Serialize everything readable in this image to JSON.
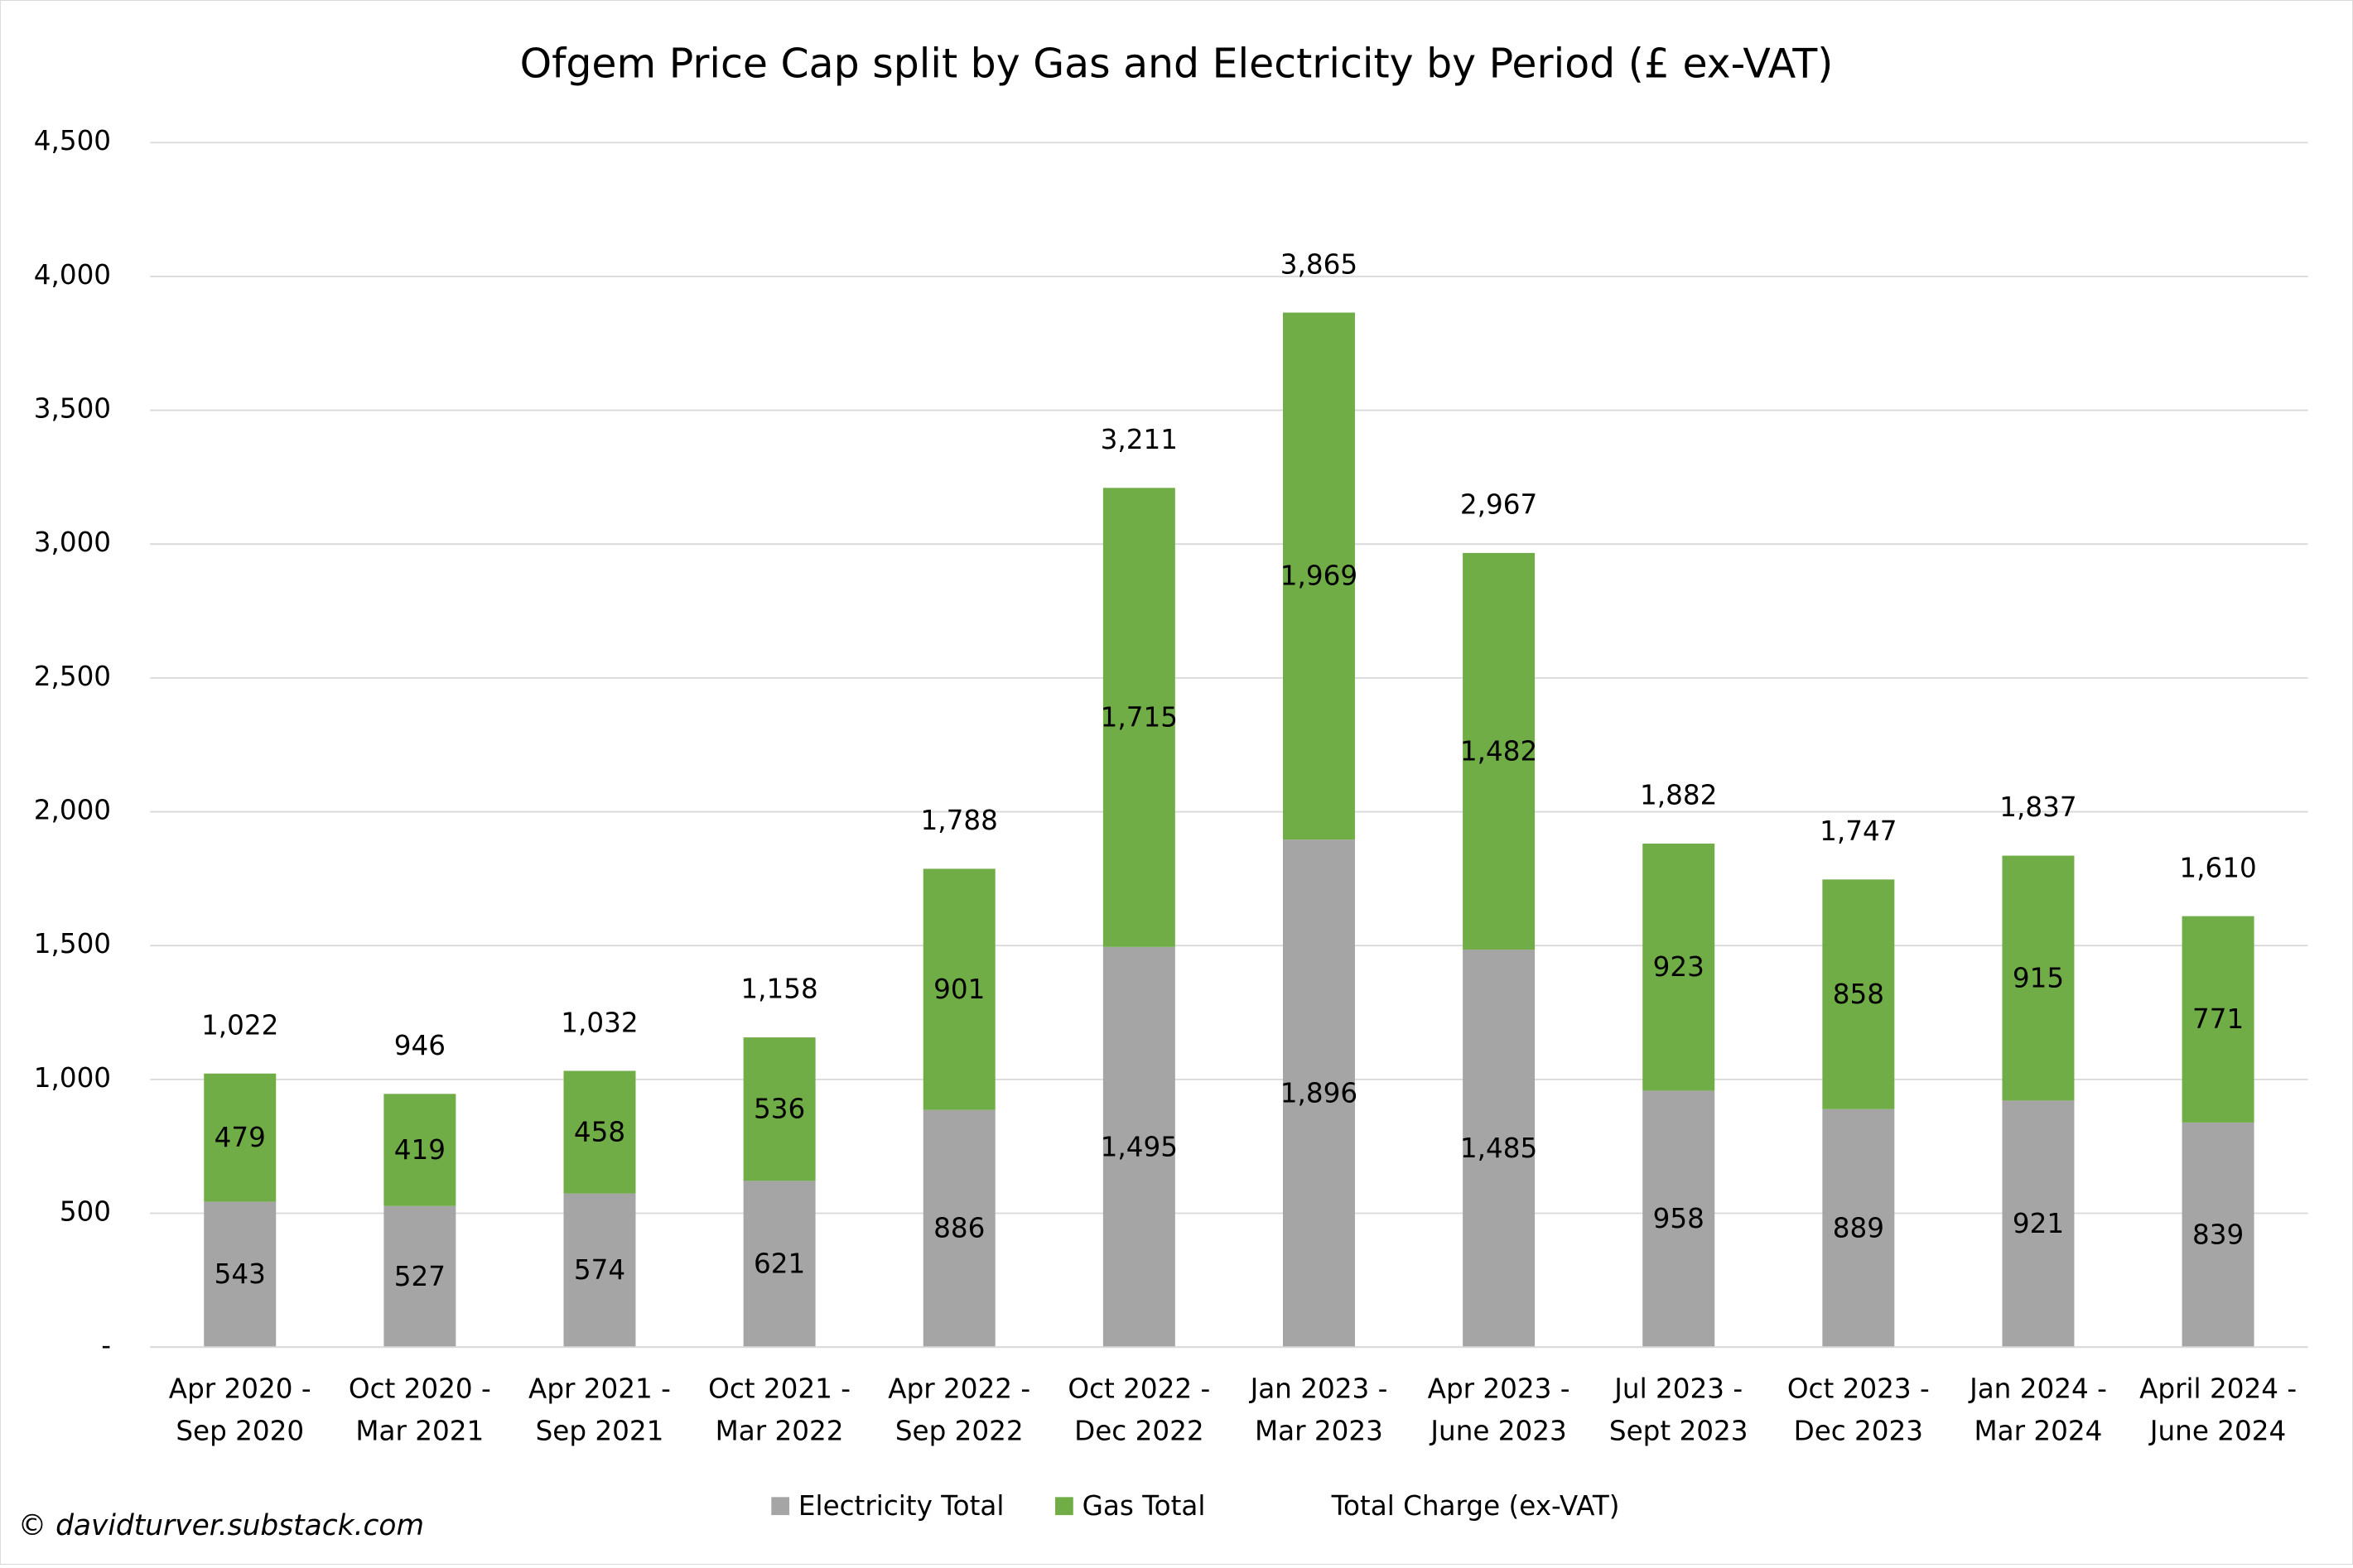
{
  "chart_data": {
    "type": "stacked_bar",
    "title": "Ofgem Price Cap split by Gas and Electricity by Period (£ ex-VAT)",
    "footer": "© davidturver.substack.com",
    "categories": [
      "Apr 2020 - Sep 2020",
      "Oct 2020 - Mar 2021",
      "Apr 2021 - Sep 2021",
      "Oct 2021 - Mar 2022",
      "Apr 2022 - Sep 2022",
      "Oct 2022 - Dec 2022",
      "Jan 2023 - Mar 2023",
      "Apr 2023 - June 2023",
      "Jul 2023 - Sept 2023",
      "Oct 2023 - Dec 2023",
      "Jan 2024 - Mar 2024",
      "April 2024 - June 2024"
    ],
    "series": [
      {
        "name": "Electricity Total",
        "color": "#a5a5a5",
        "values": [
          543,
          527,
          574,
          621,
          886,
          1495,
          1896,
          1485,
          958,
          889,
          921,
          839
        ],
        "value_labels": [
          "543",
          "527",
          "574",
          "621",
          "886",
          "1,495",
          "1,896",
          "1,485",
          "958",
          "889",
          "921",
          "839"
        ]
      },
      {
        "name": "Gas Total",
        "color": "#70ad47",
        "values": [
          479,
          419,
          458,
          536,
          901,
          1715,
          1969,
          1482,
          923,
          858,
          915,
          771
        ],
        "value_labels": [
          "479",
          "419",
          "458",
          "536",
          "901",
          "1,715",
          "1,969",
          "1,482",
          "923",
          "858",
          "915",
          "771"
        ]
      },
      {
        "name": "Total Charge (ex-VAT)",
        "kind": "total",
        "values": [
          1022,
          946,
          1032,
          1158,
          1788,
          3211,
          3865,
          2967,
          1882,
          1747,
          1837,
          1610
        ],
        "value_labels": [
          "1,022",
          "946",
          "1,032",
          "1,158",
          "1,788",
          "3,211",
          "3,865",
          "2,967",
          "1,882",
          "1,747",
          "1,837",
          "1,610"
        ]
      }
    ],
    "ylim": [
      0,
      4500
    ],
    "yticks": [
      {
        "value": 0,
        "label": "-"
      },
      500,
      {
        "value": 1000,
        "label": "1,000"
      },
      {
        "value": 1500,
        "label": "1,500"
      },
      {
        "value": 2000,
        "label": "2,000"
      },
      {
        "value": 2500,
        "label": "2,500"
      },
      {
        "value": 3000,
        "label": "3,000"
      },
      {
        "value": 3500,
        "label": "3,500"
      },
      {
        "value": 4000,
        "label": "4,000"
      },
      {
        "value": 4500,
        "label": "4,500"
      }
    ],
    "grid": true,
    "legend": "bottom"
  }
}
